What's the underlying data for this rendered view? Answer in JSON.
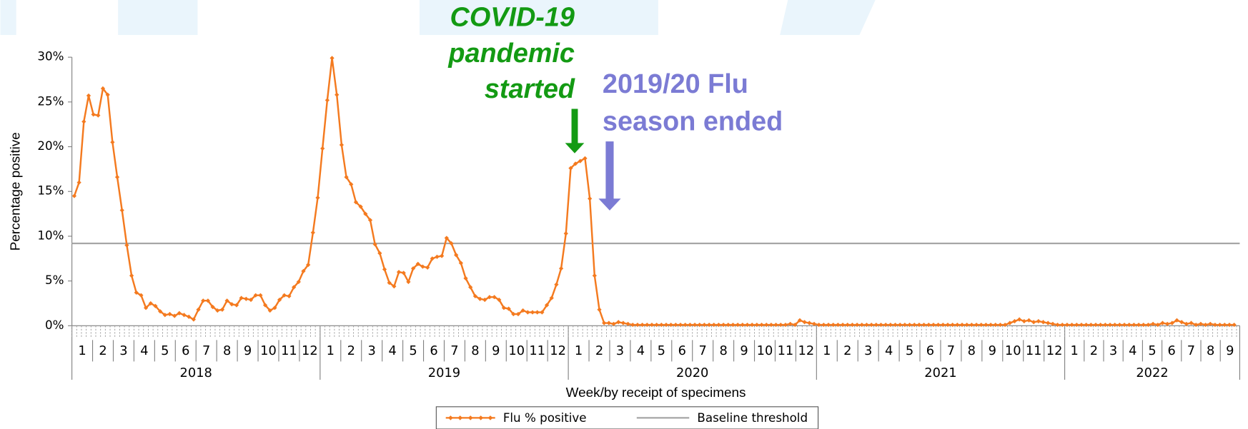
{
  "chart_data": {
    "type": "line",
    "y_label": "Percentage positive",
    "x_label": "Week/by receipt of specimens",
    "ylim": [
      0,
      30
    ],
    "yticks": [
      {
        "value": 0,
        "label": "0%"
      },
      {
        "value": 5,
        "label": "5%"
      },
      {
        "value": 10,
        "label": "10%"
      },
      {
        "value": 15,
        "label": "15%"
      },
      {
        "value": 20,
        "label": "20%"
      },
      {
        "value": 25,
        "label": "25%"
      },
      {
        "value": 30,
        "label": "30%"
      }
    ],
    "x_axis": {
      "years": [
        2018,
        2019,
        2020,
        2021,
        2022
      ],
      "months": [
        [
          1,
          2,
          3,
          4,
          5,
          6,
          7,
          8,
          9,
          10,
          11,
          12
        ],
        [
          1,
          2,
          3,
          4,
          5,
          6,
          7,
          8,
          9,
          10,
          11,
          12
        ],
        [
          1,
          2,
          3,
          4,
          5,
          6,
          7,
          8,
          9,
          10,
          11,
          12
        ],
        [
          1,
          2,
          3,
          4,
          5,
          6,
          7,
          8,
          9,
          10,
          11,
          12
        ],
        [
          1,
          2,
          3,
          4,
          5,
          6,
          7,
          8,
          9
        ]
      ],
      "weeks_per_year": 52
    },
    "series": [
      {
        "name": "Flu % positive",
        "color": "#f47a1f",
        "values": [
          14.5,
          16,
          22.8,
          25.7,
          23.6,
          23.5,
          26.5,
          25.8,
          20.5,
          16.6,
          12.9,
          9,
          5.6,
          3.7,
          3.4,
          2,
          2.5,
          2.2,
          1.6,
          1.2,
          1.3,
          1.1,
          1.4,
          1.2,
          1.0,
          0.7,
          1.8,
          2.8,
          2.8,
          2.1,
          1.7,
          1.8,
          2.8,
          2.4,
          2.3,
          3.1,
          3.0,
          2.9,
          3.4,
          3.4,
          2.3,
          1.7,
          2.0,
          2.9,
          3.4,
          3.3,
          4.3,
          4.9,
          6.1,
          6.8,
          10.4,
          14.3,
          19.8,
          25.2,
          29.9,
          25.8,
          20.2,
          16.6,
          15.8,
          13.8,
          13.3,
          12.5,
          11.8,
          9.1,
          8.1,
          6.3,
          4.8,
          4.4,
          6.0,
          5.9,
          4.9,
          6.4,
          6.9,
          6.6,
          6.5,
          7.5,
          7.7,
          7.8,
          9.8,
          9.2,
          7.9,
          7.0,
          5.3,
          4.3,
          3.3,
          3.0,
          2.9,
          3.2,
          3.2,
          2.9,
          2.0,
          1.9,
          1.3,
          1.3,
          1.7,
          1.5,
          1.5,
          1.5,
          1.5,
          2.3,
          3.1,
          4.6,
          6.4,
          10.3,
          17.6,
          18.1,
          18.4,
          18.7,
          14.2,
          5.6,
          1.8,
          0.3,
          0.3,
          0.2,
          0.4,
          0.3,
          0.2,
          0.1,
          0.1,
          0.1,
          0.1,
          0.1,
          0.1,
          0.1,
          0.1,
          0.1,
          0.1,
          0.1,
          0.1,
          0.1,
          0.1,
          0.1,
          0.1,
          0.1,
          0.1,
          0.1,
          0.1,
          0.1,
          0.1,
          0.1,
          0.1,
          0.1,
          0.1,
          0.1,
          0.1,
          0.1,
          0.1,
          0.1,
          0.1,
          0.1,
          0.2,
          0.1,
          0.6,
          0.4,
          0.3,
          0.2,
          0.1,
          0.1,
          0.1,
          0.1,
          0.1,
          0.1,
          0.1,
          0.1,
          0.1,
          0.1,
          0.1,
          0.1,
          0.1,
          0.1,
          0.1,
          0.1,
          0.1,
          0.1,
          0.1,
          0.1,
          0.1,
          0.1,
          0.1,
          0.1,
          0.1,
          0.1,
          0.1,
          0.1,
          0.1,
          0.1,
          0.1,
          0.1,
          0.1,
          0.1,
          0.1,
          0.1,
          0.1,
          0.1,
          0.1,
          0.1,
          0.3,
          0.5,
          0.7,
          0.5,
          0.6,
          0.4,
          0.5,
          0.4,
          0.3,
          0.2,
          0.1,
          0.1,
          0.1,
          0.1,
          0.1,
          0.1,
          0.1,
          0.1,
          0.1,
          0.1,
          0.1,
          0.1,
          0.1,
          0.1,
          0.1,
          0.1,
          0.1,
          0.1,
          0.1,
          0.1,
          0.2,
          0.1,
          0.3,
          0.2,
          0.3,
          0.6,
          0.4,
          0.2,
          0.3,
          0.1,
          0.2,
          0.1,
          0.2,
          0.1,
          0.1,
          0.1,
          0.1,
          0.1
        ]
      }
    ],
    "reference_line": {
      "name": "Baseline threshold",
      "value": 9.2,
      "color": "#a6a6a6"
    },
    "annotations": [
      {
        "lines": [
          "COVID-19",
          "pandemic",
          "started"
        ],
        "color": "#139a13"
      },
      {
        "lines": [
          "2019/20 Flu",
          "season ended"
        ],
        "color": "#7b7bd4"
      }
    ]
  }
}
